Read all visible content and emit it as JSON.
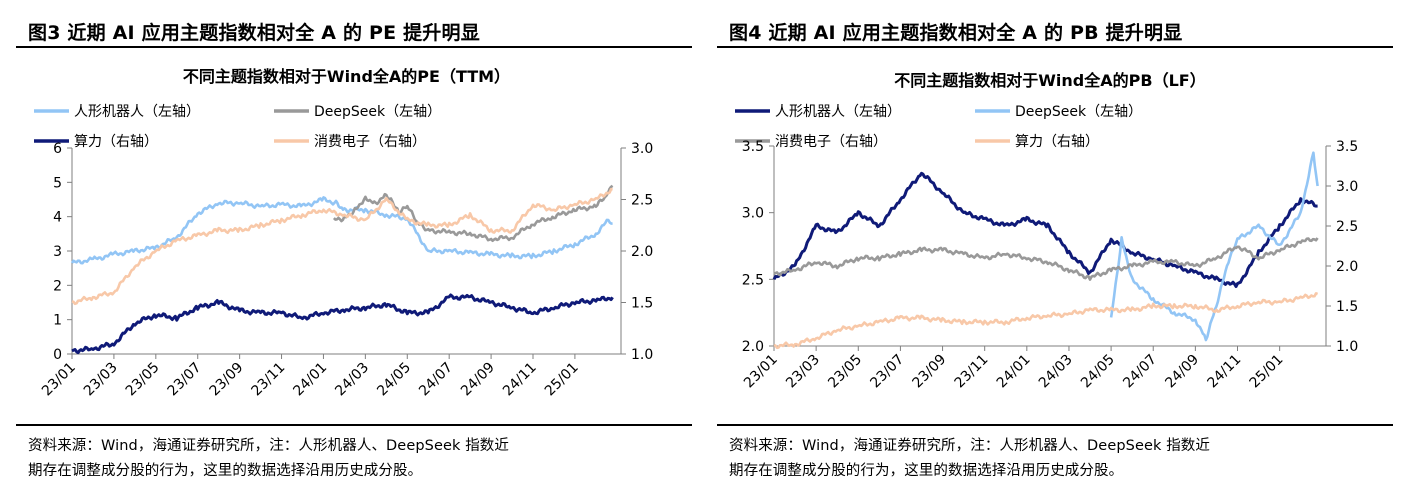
{
  "panels": [
    {
      "fig_title": "图3  近期 AI 应用主题指数相对全 A 的 PE 提升明显",
      "source_l1": "资料来源：Wind，海通证券研究所，注：人形机器人、DeepSeek 指数近",
      "source_l2": "期存在调整成分股的行为，这里的数据选择沿用历史成分股。"
    },
    {
      "fig_title": "图4  近期 AI 应用主题指数相对全 A 的 PB 提升明显",
      "source_l1": "资料来源：Wind，海通证券研究所，注：人形机器人、DeepSeek 指数近",
      "source_l2": "期存在调整成分股的行为，这里的数据选择沿用历史成分股。"
    }
  ],
  "chart_data": [
    {
      "type": "line",
      "title": "不同主题指数相对于Wind全A的PE（TTM）",
      "x_ticks": [
        "23/01",
        "23/03",
        "23/05",
        "23/07",
        "23/09",
        "23/11",
        "24/01",
        "24/03",
        "24/05",
        "24/07",
        "24/09",
        "24/11",
        "25/01"
      ],
      "x_range": [
        0,
        26.2
      ],
      "left_axis": {
        "min": 0,
        "max": 6,
        "ticks": [
          "0",
          "1",
          "2",
          "3",
          "4",
          "5",
          "6"
        ]
      },
      "right_axis": {
        "min": 1.0,
        "max": 3.0,
        "ticks": [
          "1.0",
          "1.5",
          "2.0",
          "2.5",
          "3.0"
        ]
      },
      "legend": [
        "人形机器人（左轴）",
        "DeepSeek（左轴）",
        "算力（右轴）",
        "消费电子（右轴）"
      ],
      "series": [
        {
          "name": "人形机器人（左轴）",
          "axis": "left",
          "color": "#92c5f5",
          "points": [
            [
              0,
              2.65
            ],
            [
              1,
              2.75
            ],
            [
              2,
              2.9
            ],
            [
              3,
              3.0
            ],
            [
              4,
              3.1
            ],
            [
              5,
              3.4
            ],
            [
              6,
              4.1
            ],
            [
              7,
              4.4
            ],
            [
              8,
              4.4
            ],
            [
              9,
              4.3
            ],
            [
              10,
              4.35
            ],
            [
              11,
              4.3
            ],
            [
              12,
              4.5
            ],
            [
              12.6,
              4.4
            ],
            [
              13,
              4.2
            ],
            [
              14,
              4.2
            ],
            [
              15,
              4.05
            ],
            [
              16,
              3.95
            ],
            [
              17,
              3.0
            ],
            [
              18,
              3.0
            ],
            [
              19,
              2.95
            ],
            [
              20,
              2.9
            ],
            [
              21,
              2.85
            ],
            [
              22,
              2.85
            ],
            [
              23,
              3.0
            ],
            [
              24,
              3.2
            ],
            [
              25,
              3.5
            ],
            [
              25.6,
              3.9
            ],
            [
              25.8,
              3.8
            ]
          ]
        },
        {
          "name": "DeepSeek（左轴）",
          "axis": "left",
          "color": "#999999",
          "points": [
            [
              12.5,
              3.9
            ],
            [
              13,
              3.95
            ],
            [
              13.5,
              4.2
            ],
            [
              14,
              4.55
            ],
            [
              14.5,
              4.4
            ],
            [
              15,
              4.65
            ],
            [
              15.3,
              4.45
            ],
            [
              15.6,
              4.1
            ],
            [
              16,
              4.3
            ],
            [
              16.5,
              3.8
            ],
            [
              17,
              3.6
            ],
            [
              18,
              3.55
            ],
            [
              19,
              3.5
            ],
            [
              20,
              3.35
            ],
            [
              21,
              3.4
            ],
            [
              22,
              3.8
            ],
            [
              23,
              4.0
            ],
            [
              24,
              4.2
            ],
            [
              25,
              4.3
            ],
            [
              25.5,
              4.6
            ],
            [
              25.8,
              4.9
            ]
          ]
        },
        {
          "name": "算力（右轴）",
          "axis": "right",
          "color": "#0f1a78",
          "points": [
            [
              0,
              1.03
            ],
            [
              1,
              1.05
            ],
            [
              2,
              1.1
            ],
            [
              3,
              1.3
            ],
            [
              4,
              1.38
            ],
            [
              5,
              1.35
            ],
            [
              6,
              1.45
            ],
            [
              7,
              1.5
            ],
            [
              8,
              1.42
            ],
            [
              9,
              1.4
            ],
            [
              10,
              1.4
            ],
            [
              11,
              1.35
            ],
            [
              12,
              1.4
            ],
            [
              13,
              1.43
            ],
            [
              14,
              1.45
            ],
            [
              15,
              1.48
            ],
            [
              16,
              1.4
            ],
            [
              17,
              1.4
            ],
            [
              18,
              1.55
            ],
            [
              19,
              1.55
            ],
            [
              20,
              1.5
            ],
            [
              21,
              1.45
            ],
            [
              22,
              1.4
            ],
            [
              23,
              1.45
            ],
            [
              24,
              1.5
            ],
            [
              25,
              1.52
            ],
            [
              25.8,
              1.55
            ]
          ]
        },
        {
          "name": "消费电子（右轴）",
          "axis": "right",
          "color": "#f8c8a8",
          "points": [
            [
              0,
              1.5
            ],
            [
              1,
              1.55
            ],
            [
              2,
              1.6
            ],
            [
              3,
              1.85
            ],
            [
              4,
              2.0
            ],
            [
              5,
              2.1
            ],
            [
              6,
              2.15
            ],
            [
              7,
              2.2
            ],
            [
              8,
              2.2
            ],
            [
              9,
              2.25
            ],
            [
              10,
              2.3
            ],
            [
              11,
              2.35
            ],
            [
              12,
              2.4
            ],
            [
              13,
              2.35
            ],
            [
              14,
              2.3
            ],
            [
              15,
              2.5
            ],
            [
              16,
              2.3
            ],
            [
              17,
              2.25
            ],
            [
              18,
              2.25
            ],
            [
              19,
              2.35
            ],
            [
              20,
              2.2
            ],
            [
              21,
              2.2
            ],
            [
              22,
              2.45
            ],
            [
              23,
              2.4
            ],
            [
              24,
              2.45
            ],
            [
              25,
              2.5
            ],
            [
              25.8,
              2.6
            ]
          ]
        }
      ]
    },
    {
      "type": "line",
      "title": "不同主题指数相对于Wind全A的PB（LF）",
      "x_ticks": [
        "23/01",
        "23/03",
        "23/05",
        "23/07",
        "23/09",
        "23/11",
        "24/01",
        "24/03",
        "24/05",
        "24/07",
        "24/09",
        "24/11",
        "25/01"
      ],
      "x_range": [
        0,
        26.2
      ],
      "left_axis": {
        "min": 2.0,
        "max": 3.5,
        "ticks": [
          "2.0",
          "2.5",
          "3.0",
          "3.5"
        ]
      },
      "right_axis": {
        "min": 1.0,
        "max": 3.5,
        "ticks": [
          "1.0",
          "1.5",
          "2.0",
          "2.5",
          "3.0",
          "3.5"
        ]
      },
      "legend": [
        "人形机器人（左轴）",
        "DeepSeek（左轴）",
        "消费电子（右轴）",
        "算力（右轴）"
      ],
      "series": [
        {
          "name": "人形机器人（左轴）",
          "axis": "left",
          "color": "#0f1a78",
          "points": [
            [
              0,
              2.5
            ],
            [
              1,
              2.6
            ],
            [
              2,
              2.9
            ],
            [
              3,
              2.85
            ],
            [
              4,
              3.0
            ],
            [
              5,
              2.9
            ],
            [
              6,
              3.1
            ],
            [
              7,
              3.3
            ],
            [
              8,
              3.15
            ],
            [
              9,
              3.0
            ],
            [
              10,
              2.95
            ],
            [
              11,
              2.9
            ],
            [
              12,
              2.95
            ],
            [
              13,
              2.9
            ],
            [
              14,
              2.7
            ],
            [
              15,
              2.55
            ],
            [
              16,
              2.8
            ],
            [
              17,
              2.7
            ],
            [
              18,
              2.65
            ],
            [
              19,
              2.6
            ],
            [
              20,
              2.55
            ],
            [
              21,
              2.5
            ],
            [
              22,
              2.45
            ],
            [
              23,
              2.7
            ],
            [
              24,
              2.9
            ],
            [
              25,
              3.1
            ],
            [
              25.8,
              3.05
            ]
          ]
        },
        {
          "name": "DeepSeek（左轴）",
          "axis": "left",
          "color": "#92c5f5",
          "points": [
            [
              16,
              2.2
            ],
            [
              16.5,
              2.8
            ],
            [
              17,
              2.5
            ],
            [
              18,
              2.35
            ],
            [
              19,
              2.25
            ],
            [
              20,
              2.2
            ],
            [
              20.5,
              2.05
            ],
            [
              21,
              2.3
            ],
            [
              21.5,
              2.6
            ],
            [
              22,
              2.8
            ],
            [
              23,
              2.9
            ],
            [
              24,
              2.75
            ],
            [
              25,
              3.0
            ],
            [
              25.6,
              3.45
            ],
            [
              25.8,
              3.2
            ]
          ]
        },
        {
          "name": "消费电子（右轴）",
          "axis": "right",
          "color": "#999999",
          "points": [
            [
              0,
              1.9
            ],
            [
              1,
              1.95
            ],
            [
              2,
              2.05
            ],
            [
              3,
              2.0
            ],
            [
              4,
              2.1
            ],
            [
              5,
              2.1
            ],
            [
              6,
              2.15
            ],
            [
              7,
              2.2
            ],
            [
              8,
              2.2
            ],
            [
              9,
              2.15
            ],
            [
              10,
              2.1
            ],
            [
              11,
              2.15
            ],
            [
              12,
              2.1
            ],
            [
              13,
              2.05
            ],
            [
              14,
              1.95
            ],
            [
              15,
              1.85
            ],
            [
              16,
              1.95
            ],
            [
              17,
              2.0
            ],
            [
              18,
              2.05
            ],
            [
              19,
              2.05
            ],
            [
              20,
              2.0
            ],
            [
              21,
              2.1
            ],
            [
              22,
              2.25
            ],
            [
              23,
              2.1
            ],
            [
              24,
              2.2
            ],
            [
              25,
              2.3
            ],
            [
              25.8,
              2.35
            ]
          ]
        },
        {
          "name": "算力（右轴）",
          "axis": "right",
          "color": "#f8c8a8",
          "points": [
            [
              0,
              1.0
            ],
            [
              1,
              1.02
            ],
            [
              2,
              1.1
            ],
            [
              3,
              1.2
            ],
            [
              4,
              1.25
            ],
            [
              5,
              1.3
            ],
            [
              6,
              1.35
            ],
            [
              7,
              1.35
            ],
            [
              8,
              1.32
            ],
            [
              9,
              1.3
            ],
            [
              10,
              1.3
            ],
            [
              11,
              1.3
            ],
            [
              12,
              1.35
            ],
            [
              13,
              1.38
            ],
            [
              14,
              1.4
            ],
            [
              15,
              1.45
            ],
            [
              16,
              1.45
            ],
            [
              17,
              1.45
            ],
            [
              18,
              1.5
            ],
            [
              19,
              1.5
            ],
            [
              20,
              1.5
            ],
            [
              21,
              1.45
            ],
            [
              22,
              1.5
            ],
            [
              23,
              1.55
            ],
            [
              24,
              1.55
            ],
            [
              25,
              1.6
            ],
            [
              25.8,
              1.65
            ]
          ]
        }
      ]
    }
  ]
}
